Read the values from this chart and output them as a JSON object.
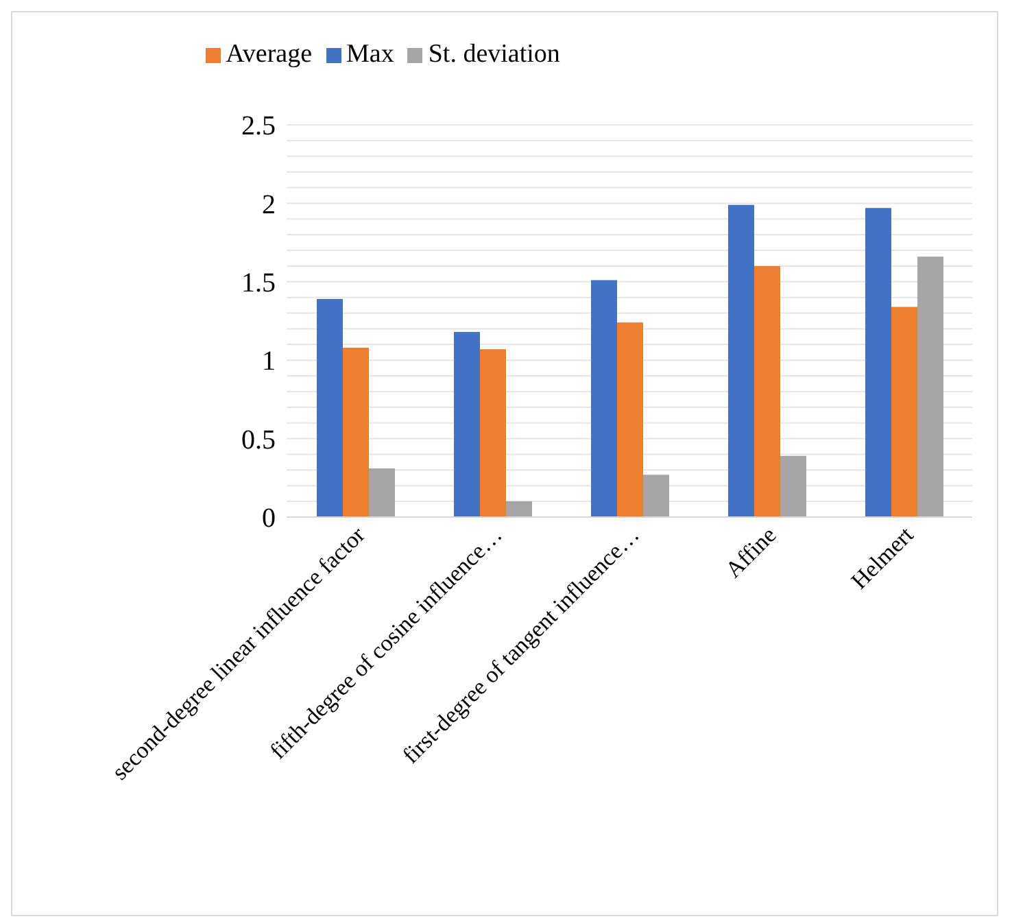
{
  "chart_data": {
    "type": "bar",
    "categories": [
      "second-degree linear influence factor",
      "fifth-degree of cosine influence…",
      "first-degree of tangent influence…",
      "Affine",
      "Helmert"
    ],
    "series": [
      {
        "name": "Max",
        "color": "#4472c4",
        "values": [
          1.39,
          1.18,
          1.51,
          1.99,
          1.97
        ]
      },
      {
        "name": "Average",
        "color": "#ed7d31",
        "values": [
          1.08,
          1.07,
          1.24,
          1.6,
          1.34
        ]
      },
      {
        "name": "St. deviation",
        "color": "#a5a5a5",
        "values": [
          0.31,
          0.1,
          0.27,
          0.39,
          1.66
        ]
      }
    ],
    "ylim": [
      0,
      2.5
    ],
    "yticks": [
      0,
      {
        "value": 0.1,
        "label": null
      },
      {
        "value": 0.2,
        "label": null
      },
      {
        "value": 0.3,
        "label": null
      },
      {
        "value": 0.4,
        "label": null
      },
      0.5,
      {
        "value": 0.6,
        "label": null
      },
      {
        "value": 0.7,
        "label": null
      },
      {
        "value": 0.8,
        "label": null
      },
      {
        "value": 0.9,
        "label": null
      },
      1,
      {
        "value": 1.1,
        "label": null
      },
      {
        "value": 1.2,
        "label": null
      },
      {
        "value": 1.3,
        "label": null
      },
      {
        "value": 1.4,
        "label": null
      },
      1.5,
      {
        "value": 1.6,
        "label": null
      },
      {
        "value": 1.7,
        "label": null
      },
      {
        "value": 1.8,
        "label": null
      },
      {
        "value": 1.9,
        "label": null
      },
      2,
      {
        "value": 2.1,
        "label": null
      },
      {
        "value": 2.2,
        "label": null
      },
      {
        "value": 2.3,
        "label": null
      },
      {
        "value": 2.4,
        "label": null
      },
      2.5
    ],
    "grid": "y",
    "legend": "top"
  }
}
